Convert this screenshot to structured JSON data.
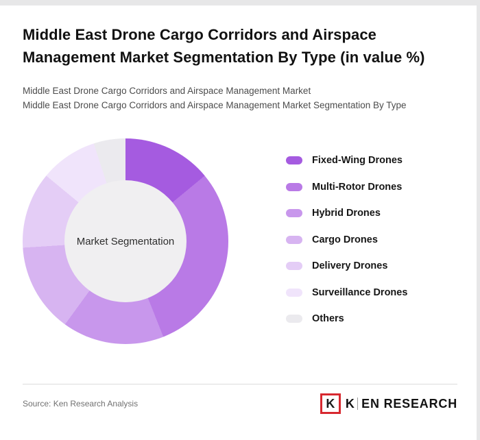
{
  "page": {
    "title": "Middle East Drone Cargo Corridors and Airspace Management Market Segmentation By Type (in value %)",
    "subtitle1": "Middle East Drone Cargo Corridors and Airspace Management Market",
    "subtitle2": "Middle East Drone Cargo Corridors and Airspace Management Market Segmentation By Type"
  },
  "chart_data": {
    "type": "pie",
    "subtype": "donut",
    "title": "Middle East Drone Cargo Corridors and Airspace Management Market Segmentation By Type (in value %)",
    "center_label": "Market Segmentation",
    "labels": [
      "Fixed-Wing Drones",
      "Multi-Rotor Drones",
      "Hybrid Drones",
      "Cargo Drones",
      "Delivery Drones",
      "Surveillance Drones",
      "Others"
    ],
    "values": [
      14,
      30,
      16,
      14,
      12,
      9,
      5
    ],
    "unit": "value %",
    "colors": [
      "#a55be0",
      "#b97ae6",
      "#c897ec",
      "#d7b4f1",
      "#e4cdf6",
      "#f0e4fb",
      "#ebeaee"
    ],
    "start_angle_deg": 0,
    "direction": "clockwise",
    "legend_position": "right"
  },
  "footer": {
    "source": "Source: Ken Research Analysis",
    "logo": {
      "box_letter": "K",
      "wordmark_first": "K",
      "wordmark_rest": "EN RESEARCH",
      "accent_color": "#d7282f"
    }
  }
}
